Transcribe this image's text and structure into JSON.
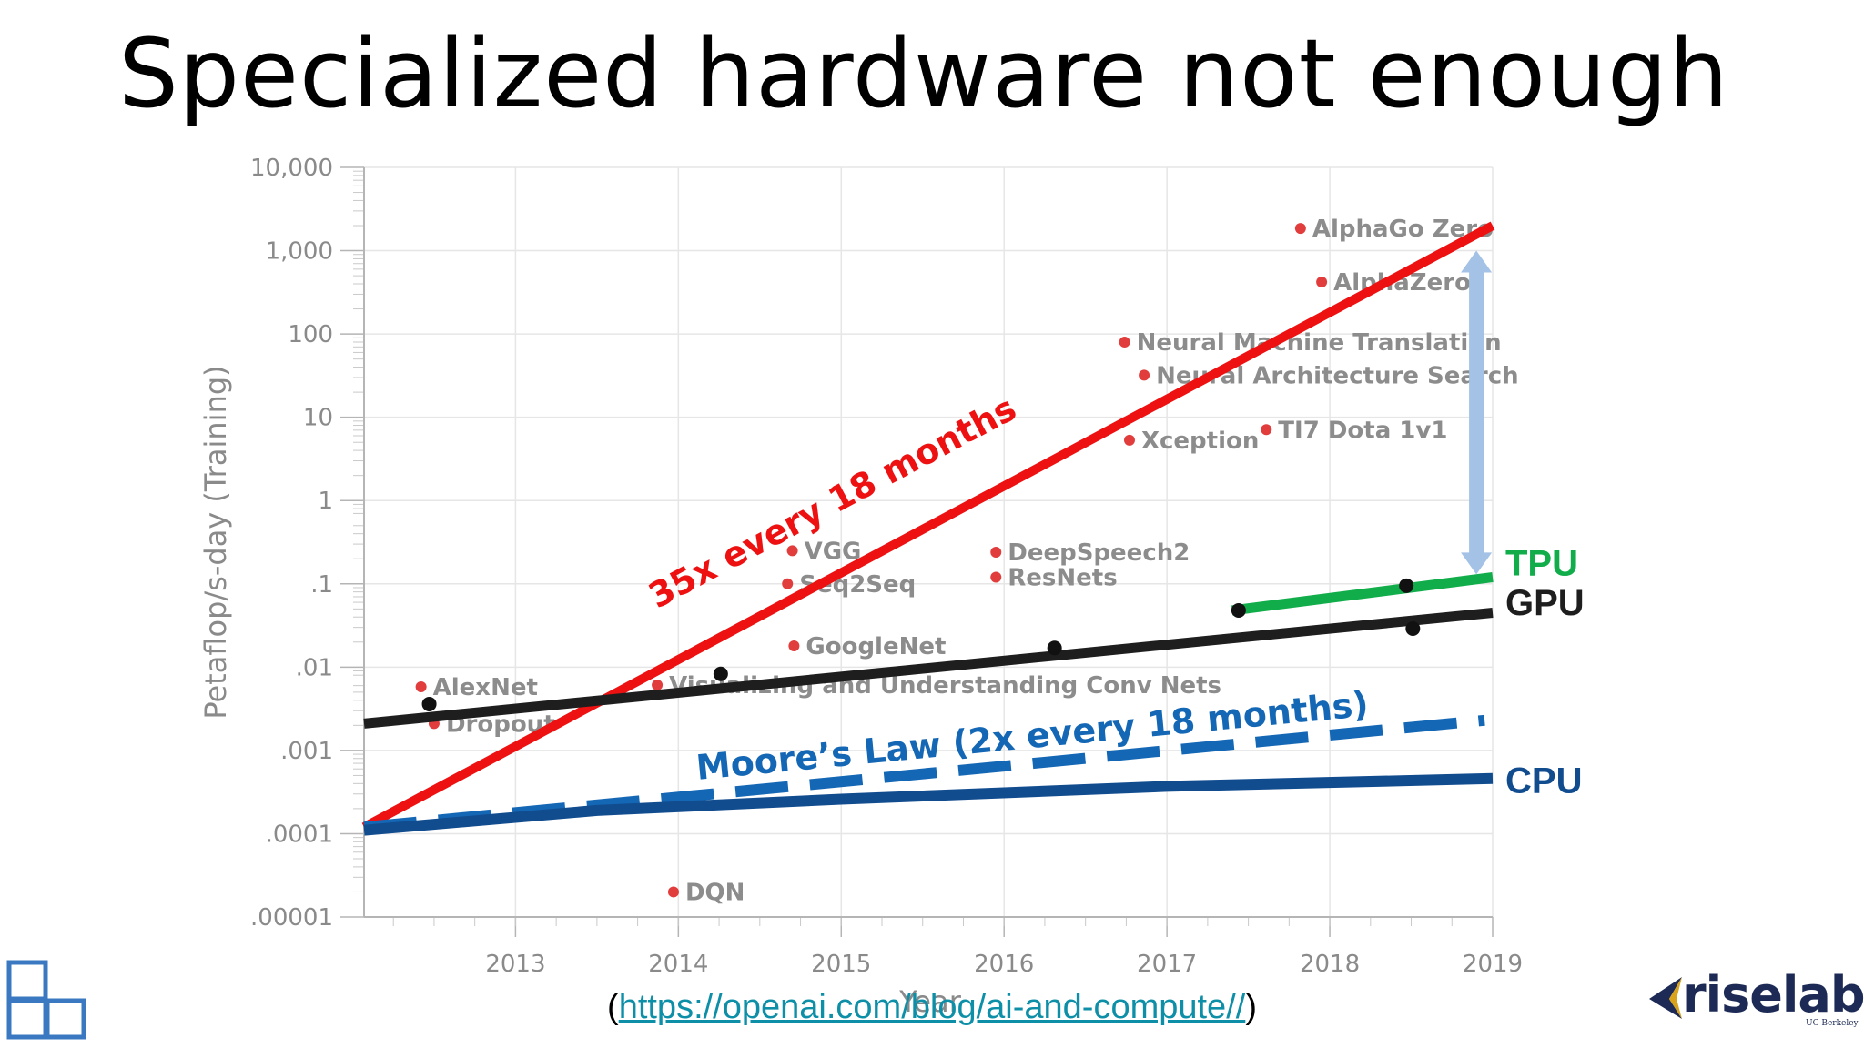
{
  "slide": {
    "title": "Specialized hardware not enough",
    "source_prefix": "(",
    "source_link": "https://openai.com/blog/ai-and-compute//",
    "source_suffix": ")",
    "logo_text": "riselab",
    "logo_subtext": "UC Berkeley"
  },
  "chart_data": {
    "type": "scatter",
    "xlabel": "Year",
    "ylabel": "Petaflop/s-day (Training)",
    "y_scale": "log",
    "xlim": [
      2012.07,
      2019.0
    ],
    "ylim": [
      1e-05,
      10000
    ],
    "x_ticks": [
      2013,
      2014,
      2015,
      2016,
      2017,
      2018,
      2019
    ],
    "y_ticks": [
      {
        "value": 1e-05,
        "label": ".00001"
      },
      {
        "value": 0.0001,
        "label": ".0001"
      },
      {
        "value": 0.001,
        "label": ".001"
      },
      {
        "value": 0.01,
        "label": ".01"
      },
      {
        "value": 0.1,
        "label": ".1"
      },
      {
        "value": 1,
        "label": "1"
      },
      {
        "value": 10,
        "label": "10"
      },
      {
        "value": 100,
        "label": "100"
      },
      {
        "value": 1000,
        "label": "1,000"
      },
      {
        "value": 10000,
        "label": "10,000"
      }
    ],
    "grid": true,
    "points": [
      {
        "label": "AlexNet",
        "x": 2012.42,
        "y": 0.0058
      },
      {
        "label": "Dropout",
        "x": 2012.5,
        "y": 0.0021
      },
      {
        "label": "DQN",
        "x": 2013.97,
        "y": 2e-05
      },
      {
        "label": "Visualizing and Understanding Conv Nets",
        "x": 2013.87,
        "y": 0.0061
      },
      {
        "label": "GoogleNet",
        "x": 2014.71,
        "y": 0.018
      },
      {
        "label": "Seq2Seq",
        "x": 2014.67,
        "y": 0.1
      },
      {
        "label": "VGG",
        "x": 2014.7,
        "y": 0.25
      },
      {
        "label": "DeepSpeech2",
        "x": 2015.95,
        "y": 0.24
      },
      {
        "label": "ResNets",
        "x": 2015.95,
        "y": 0.12
      },
      {
        "label": "Xception",
        "x": 2016.77,
        "y": 5.3
      },
      {
        "label": "Neural Machine Translation",
        "x": 2016.74,
        "y": 80
      },
      {
        "label": "Neural Architecture Search",
        "x": 2016.86,
        "y": 32
      },
      {
        "label": "TI7 Dota 1v1",
        "x": 2017.61,
        "y": 7.1
      },
      {
        "label": "AlphaZero",
        "x": 2017.95,
        "y": 420
      },
      {
        "label": "AlphaGo Zero",
        "x": 2017.82,
        "y": 1850
      }
    ],
    "hardware_points": [
      {
        "x": 2012.47,
        "y": 0.0036
      },
      {
        "x": 2014.26,
        "y": 0.0083
      },
      {
        "x": 2016.31,
        "y": 0.017
      },
      {
        "x": 2017.44,
        "y": 0.048
      },
      {
        "x": 2018.47,
        "y": 0.095
      },
      {
        "x": 2018.51,
        "y": 0.029
      }
    ],
    "series": [
      {
        "name": "35x every 18 months",
        "color": "#ee1111",
        "style": "solid",
        "x": [
          2012.07,
          2019.0
        ],
        "y": [
          0.00012,
          2000
        ]
      },
      {
        "name": "GPU",
        "color": "#1e1e1e",
        "style": "solid",
        "x": [
          2012.07,
          2019.0
        ],
        "y": [
          0.0021,
          0.045
        ]
      },
      {
        "name": "TPU",
        "color": "#12ad4b",
        "style": "solid",
        "x": [
          2017.4,
          2019.0
        ],
        "y": [
          0.048,
          0.12
        ]
      },
      {
        "name": "Moore’s Law (2x every 18 months)",
        "color": "#1467b5",
        "style": "dashed",
        "x": [
          2012.07,
          2018.95
        ],
        "y": [
          0.00012,
          0.0023
        ]
      },
      {
        "name": "CPU",
        "color": "#114c8f",
        "style": "solid",
        "x": [
          2012.07,
          2013.5,
          2015.0,
          2017.0,
          2019.0
        ],
        "y": [
          0.00011,
          0.00019,
          0.00026,
          0.00037,
          0.00046
        ]
      }
    ],
    "gap_arrow": {
      "x": 2018.9,
      "y_from": 0.13,
      "y_to": 1000,
      "color": "#a3c2e6"
    },
    "colors": {
      "point": "#e23d3d",
      "point_label": "#8c8c8c",
      "axis_text": "#8a8a8a",
      "grid": "#e6e6e6"
    }
  }
}
